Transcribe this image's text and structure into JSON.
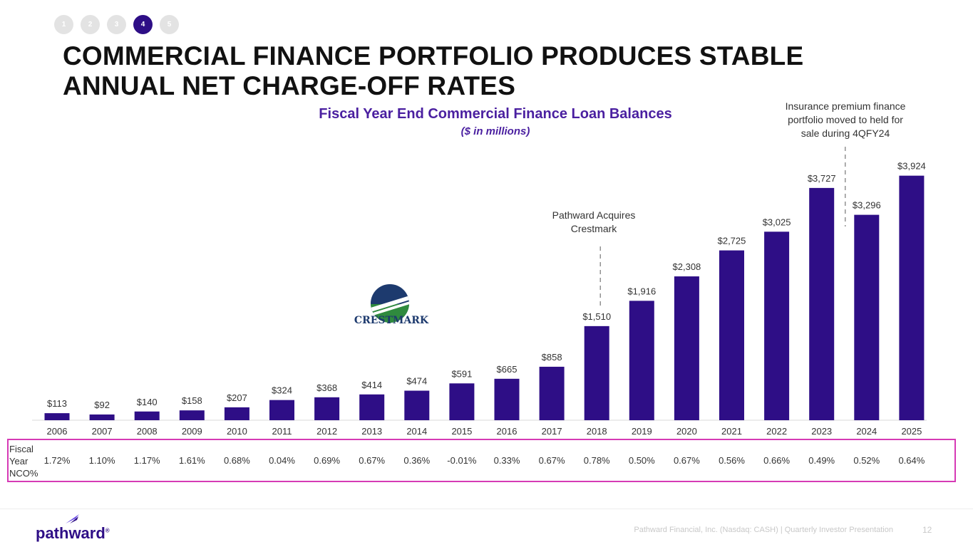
{
  "nav": {
    "steps": [
      "1",
      "2",
      "3",
      "4",
      "5"
    ],
    "active_index": 3
  },
  "title_line1": "COMMERCIAL FINANCE PORTFOLIO PRODUCES STABLE",
  "title_line2": "ANNUAL NET CHARGE-OFF RATES",
  "annotations": {
    "crestmark": [
      "Pathward Acquires",
      "Crestmark"
    ],
    "insurance": [
      "Insurance premium finance",
      "portfolio moved to held for",
      "sale during 4QFY24"
    ]
  },
  "logo_text": "CRESTMARK",
  "nco_label": [
    "Fiscal",
    "Year",
    "NCO%"
  ],
  "chart_data": {
    "type": "bar",
    "title": "Fiscal Year End Commercial Finance Loan Balances",
    "subtitle": "($ in millions)",
    "categories": [
      "2006",
      "2007",
      "2008",
      "2009",
      "2010",
      "2011",
      "2012",
      "2013",
      "2014",
      "2015",
      "2016",
      "2017",
      "2018",
      "2019",
      "2020",
      "2021",
      "2022",
      "2023",
      "2024",
      "2025"
    ],
    "values": [
      113,
      92,
      140,
      158,
      207,
      324,
      368,
      414,
      474,
      591,
      665,
      858,
      1510,
      1916,
      2308,
      2725,
      3025,
      3727,
      3296,
      3924
    ],
    "data_labels": [
      "$113",
      "$92",
      "$140",
      "$158",
      "$207",
      "$324",
      "$368",
      "$414",
      "$474",
      "$591",
      "$665",
      "$858",
      "$1,510",
      "$1,916",
      "$2,308",
      "$2,725",
      "$3,025",
      "$3,727",
      "$3,296",
      "$3,924"
    ],
    "nco_rates": [
      "1.72%",
      "1.10%",
      "1.17%",
      "1.61%",
      "0.68%",
      "0.04%",
      "0.69%",
      "0.67%",
      "0.36%",
      "-0.01%",
      "0.33%",
      "0.67%",
      "0.78%",
      "0.50%",
      "0.67%",
      "0.56%",
      "0.66%",
      "0.49%",
      "0.52%",
      "0.64%"
    ],
    "ylim": [
      0,
      4000
    ],
    "bar_color": "#2e0e86"
  },
  "footer": {
    "brand": "pathward",
    "brand_mark": "®",
    "note": "Pathward Financial, Inc. (Nasdaq: CASH) | Quarterly Investor Presentation",
    "page": "12"
  }
}
